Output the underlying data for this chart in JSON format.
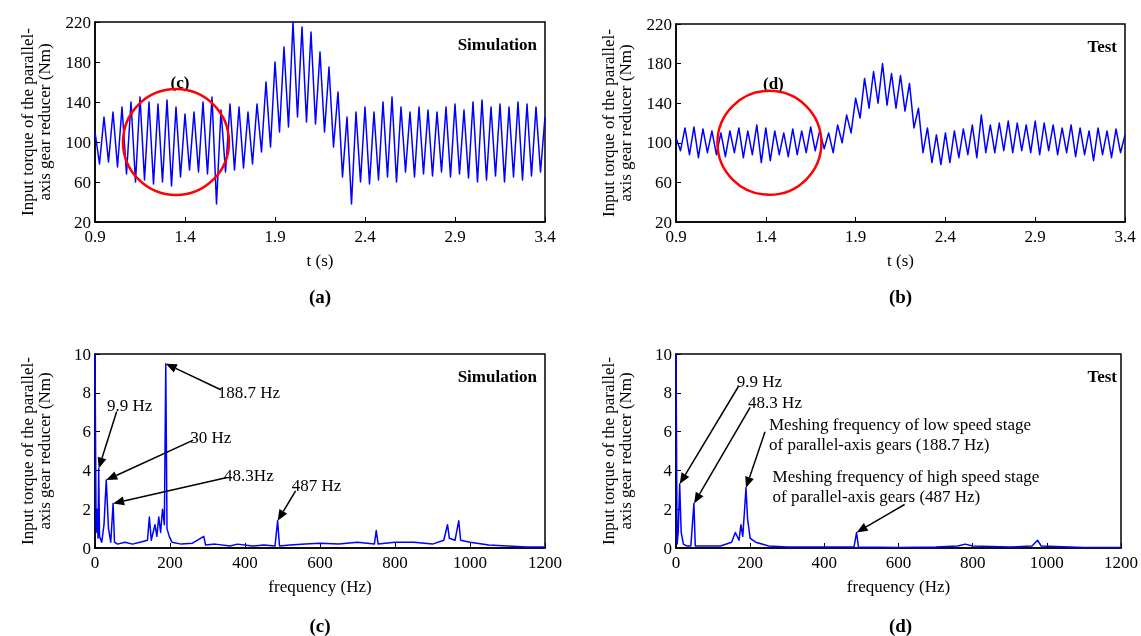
{
  "chart_data": [
    {
      "type": "line",
      "xlabel": "t (s)",
      "ylabel": "Input torque of the parallel-\naxis gear reducer (Nm)",
      "xlim": [
        0.9,
        3.4
      ],
      "xticks": [
        0.9,
        1.4,
        1.9,
        2.4,
        2.9,
        3.4
      ],
      "ylim": [
        20,
        220
      ],
      "yticks": [
        20,
        60,
        100,
        140,
        180,
        220
      ],
      "annotations": [
        "Simulation",
        {
          "text": "(c)",
          "x": 1.35,
          "y": 100
        },
        "(a)"
      ],
      "x": [
        0.9,
        0.925,
        0.95,
        0.975,
        1.0,
        1.025,
        1.05,
        1.075,
        1.1,
        1.125,
        1.15,
        1.175,
        1.2,
        1.225,
        1.25,
        1.275,
        1.3,
        1.325,
        1.35,
        1.375,
        1.4,
        1.425,
        1.45,
        1.475,
        1.5,
        1.525,
        1.55,
        1.575,
        1.6,
        1.625,
        1.65,
        1.675,
        1.7,
        1.725,
        1.75,
        1.775,
        1.8,
        1.825,
        1.85,
        1.875,
        1.9,
        1.925,
        1.95,
        1.975,
        2.0,
        2.025,
        2.05,
        2.075,
        2.1,
        2.125,
        2.15,
        2.175,
        2.2,
        2.225,
        2.25,
        2.275,
        2.3,
        2.325,
        2.35,
        2.375,
        2.4,
        2.425,
        2.45,
        2.475,
        2.5,
        2.525,
        2.55,
        2.575,
        2.6,
        2.625,
        2.65,
        2.675,
        2.7,
        2.725,
        2.75,
        2.775,
        2.8,
        2.825,
        2.85,
        2.875,
        2.9,
        2.925,
        2.95,
        2.975,
        3.0,
        3.025,
        3.05,
        3.075,
        3.1,
        3.125,
        3.15,
        3.175,
        3.2,
        3.225,
        3.25,
        3.275,
        3.3,
        3.325,
        3.35,
        3.375,
        3.4
      ],
      "series": [
        {
          "color": "#0000ff",
          "values": [
            110,
            78,
            125,
            80,
            130,
            75,
            135,
            68,
            140,
            60,
            145,
            62,
            140,
            58,
            138,
            60,
            142,
            56,
            135,
            65,
            128,
            72,
            130,
            70,
            140,
            68,
            145,
            38,
            132,
            70,
            138,
            72,
            135,
            74,
            130,
            78,
            138,
            90,
            160,
            95,
            180,
            110,
            195,
            115,
            220,
            125,
            215,
            120,
            210,
            118,
            190,
            110,
            175,
            95,
            150,
            65,
            125,
            38,
            130,
            60,
            135,
            58,
            130,
            62,
            140,
            65,
            145,
            60,
            135,
            70,
            130,
            65,
            135,
            68,
            132,
            66,
            130,
            70,
            135,
            65,
            138,
            68,
            132,
            64,
            140,
            60,
            142,
            62,
            135,
            66,
            138,
            60,
            135,
            65,
            140,
            62,
            138,
            66,
            135,
            70,
            125
          ]
        }
      ]
    },
    {
      "type": "line",
      "xlabel": "t (s)",
      "ylabel": "Input torque of the parallel-\naxis gear reducer (Nm)",
      "xlim": [
        0.9,
        3.4
      ],
      "xticks": [
        0.9,
        1.4,
        1.9,
        2.4,
        2.9,
        3.4
      ],
      "ylim": [
        20,
        220
      ],
      "yticks": [
        20,
        60,
        100,
        140,
        180,
        220
      ],
      "annotations": [
        "Test",
        {
          "text": "(d)",
          "x": 1.42,
          "y": 100
        },
        "(b)"
      ],
      "x": [
        0.9,
        0.925,
        0.95,
        0.975,
        1.0,
        1.025,
        1.05,
        1.075,
        1.1,
        1.125,
        1.15,
        1.175,
        1.2,
        1.225,
        1.25,
        1.275,
        1.3,
        1.325,
        1.35,
        1.375,
        1.4,
        1.425,
        1.45,
        1.475,
        1.5,
        1.525,
        1.55,
        1.575,
        1.6,
        1.625,
        1.65,
        1.675,
        1.7,
        1.725,
        1.75,
        1.775,
        1.8,
        1.825,
        1.85,
        1.875,
        1.9,
        1.925,
        1.95,
        1.975,
        2.0,
        2.025,
        2.05,
        2.075,
        2.1,
        2.125,
        2.15,
        2.175,
        2.2,
        2.225,
        2.25,
        2.275,
        2.3,
        2.325,
        2.35,
        2.375,
        2.4,
        2.425,
        2.45,
        2.475,
        2.5,
        2.525,
        2.55,
        2.575,
        2.6,
        2.625,
        2.65,
        2.675,
        2.7,
        2.725,
        2.75,
        2.775,
        2.8,
        2.825,
        2.85,
        2.875,
        2.9,
        2.925,
        2.95,
        2.975,
        3.0,
        3.025,
        3.05,
        3.075,
        3.1,
        3.125,
        3.15,
        3.175,
        3.2,
        3.225,
        3.25,
        3.275,
        3.3,
        3.325,
        3.35,
        3.375,
        3.4
      ],
      "series": [
        {
          "color": "#0000ff",
          "values": [
            105,
            92,
            115,
            88,
            116,
            85,
            114,
            90,
            112,
            88,
            110,
            86,
            112,
            90,
            115,
            85,
            112,
            88,
            118,
            80,
            115,
            82,
            112,
            88,
            110,
            86,
            114,
            88,
            112,
            90,
            116,
            92,
            112,
            94,
            110,
            90,
            118,
            100,
            128,
            110,
            145,
            125,
            165,
            135,
            172,
            140,
            180,
            138,
            170,
            135,
            168,
            132,
            160,
            115,
            135,
            90,
            115,
            80,
            108,
            78,
            110,
            80,
            112,
            85,
            114,
            88,
            118,
            85,
            128,
            90,
            118,
            90,
            120,
            92,
            122,
            90,
            120,
            92,
            118,
            90,
            122,
            88,
            120,
            92,
            118,
            88,
            115,
            90,
            118,
            86,
            115,
            88,
            112,
            82,
            115,
            88,
            112,
            85,
            114,
            90,
            108
          ]
        }
      ]
    },
    {
      "type": "line",
      "xlabel": "frequency (Hz)",
      "ylabel": "Input torque of the parallel-\naxis gear reducer (Nm)",
      "xlim": [
        0,
        1200
      ],
      "xticks": [
        0,
        200,
        400,
        600,
        800,
        1000,
        1200
      ],
      "ylim": [
        0,
        10
      ],
      "yticks": [
        0,
        2,
        4,
        6,
        8,
        10
      ],
      "annotations": [
        "Simulation",
        "9.9 Hz",
        "30 Hz",
        "48.3Hz",
        "188.7 Hz",
        {
          "text": "487 Hz",
          "x": 487,
          "y": 1.4
        },
        "(c)"
      ],
      "x": [
        0,
        3,
        6,
        8,
        9.9,
        12,
        18,
        24,
        30,
        36,
        42,
        48.3,
        52,
        60,
        80,
        100,
        120,
        140,
        145,
        150,
        160,
        165,
        170,
        175,
        180,
        185,
        188.7,
        192,
        198,
        205,
        230,
        260,
        290,
        295,
        320,
        360,
        380,
        420,
        450,
        480,
        487,
        492,
        520,
        560,
        600,
        650,
        700,
        745,
        750,
        755,
        800,
        850,
        900,
        930,
        940,
        945,
        960,
        970,
        975,
        1000,
        1050,
        1100,
        1150,
        1200
      ],
      "series": [
        {
          "color": "#0000ff",
          "values": [
            10,
            0.8,
            2.0,
            0.5,
            4.1,
            0.6,
            0.3,
            1.2,
            3.5,
            1.0,
            0.3,
            2.3,
            0.3,
            0.2,
            0.3,
            0.2,
            0.3,
            0.4,
            1.6,
            0.4,
            1.2,
            0.6,
            1.6,
            0.8,
            2.0,
            1.2,
            9.5,
            1.0,
            0.6,
            0.3,
            0.2,
            0.25,
            0.6,
            0.15,
            0.2,
            0.1,
            0.2,
            0.1,
            0.15,
            0.1,
            1.4,
            0.1,
            0.15,
            0.2,
            0.25,
            0.2,
            0.3,
            0.2,
            0.9,
            0.2,
            0.3,
            0.3,
            0.2,
            0.4,
            1.2,
            0.5,
            0.4,
            1.4,
            0.4,
            0.3,
            0.15,
            0.1,
            0.05,
            0.05
          ]
        }
      ]
    },
    {
      "type": "line",
      "xlabel": "frequency (Hz)",
      "ylabel": "Input torque of the parallel-\naxis gear reducer (Nm)",
      "xlim": [
        0,
        1200
      ],
      "xticks": [
        0,
        200,
        400,
        600,
        800,
        1000,
        1200
      ],
      "ylim": [
        0,
        10
      ],
      "yticks": [
        0,
        2,
        4,
        6,
        8,
        10
      ],
      "annotations": [
        "Test",
        "9.9 Hz",
        "48.3 Hz",
        {
          "text": "Meshing frequency of low speed stage\nof parallel-axis gears (188.7 Hz)",
          "x": 188.7,
          "y": 3.1
        },
        {
          "text": "Meshing frequency of high speed stage\nof parallel-axis gears (487 Hz)",
          "x": 487,
          "y": 0.8
        },
        "(d)"
      ],
      "x": [
        0,
        3,
        6,
        9.9,
        14,
        20,
        30,
        40,
        48.3,
        52,
        80,
        120,
        150,
        160,
        170,
        175,
        180,
        185,
        188.7,
        193,
        200,
        215,
        250,
        300,
        400,
        480,
        487,
        492,
        600,
        700,
        760,
        780,
        800,
        900,
        960,
        975,
        985,
        1100,
        1200
      ],
      "series": [
        {
          "color": "#0000ff",
          "values": [
            10,
            0.2,
            0.8,
            3.3,
            0.8,
            0.2,
            0.1,
            0.1,
            2.3,
            0.1,
            0.1,
            0.1,
            0.3,
            0.8,
            0.4,
            1.2,
            0.6,
            2.0,
            3.1,
            1.5,
            0.5,
            0.3,
            0.1,
            0.05,
            0.05,
            0.05,
            0.8,
            0.05,
            0.02,
            0.05,
            0.1,
            0.2,
            0.1,
            0.05,
            0.1,
            0.4,
            0.1,
            0.02,
            0.02
          ]
        }
      ]
    }
  ]
}
